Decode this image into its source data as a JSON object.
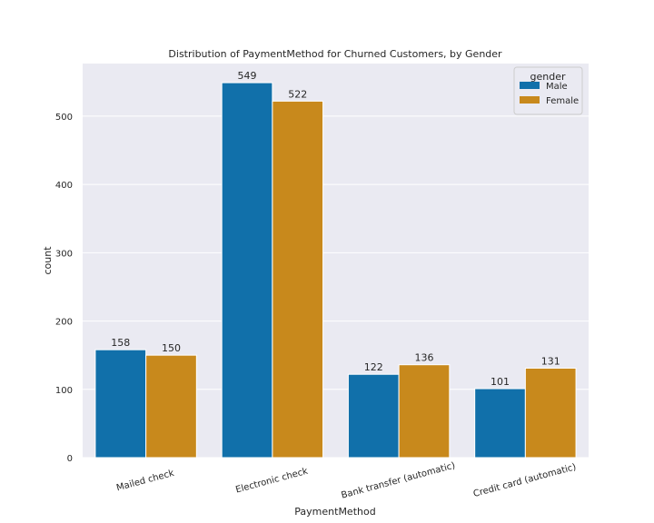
{
  "chart_data": {
    "type": "bar",
    "title": "Distribution of PaymentMethod for Churned Customers, by Gender",
    "xlabel": "PaymentMethod",
    "ylabel": "count",
    "categories": [
      "Mailed check",
      "Electronic check",
      "Bank transfer (automatic)",
      "Credit card (automatic)"
    ],
    "series": [
      {
        "name": "Male",
        "values": [
          158,
          549,
          122,
          101
        ],
        "color": "#1170aa"
      },
      {
        "name": "Female",
        "values": [
          150,
          522,
          136,
          131
        ],
        "color": "#c8891c"
      }
    ],
    "ylim": [
      0,
      577
    ],
    "yticks": [
      0,
      100,
      200,
      300,
      400,
      500
    ],
    "grid": true,
    "background": "#eaeaf2",
    "legend": {
      "title": "gender",
      "position": "top-right"
    },
    "data_labels": true
  }
}
